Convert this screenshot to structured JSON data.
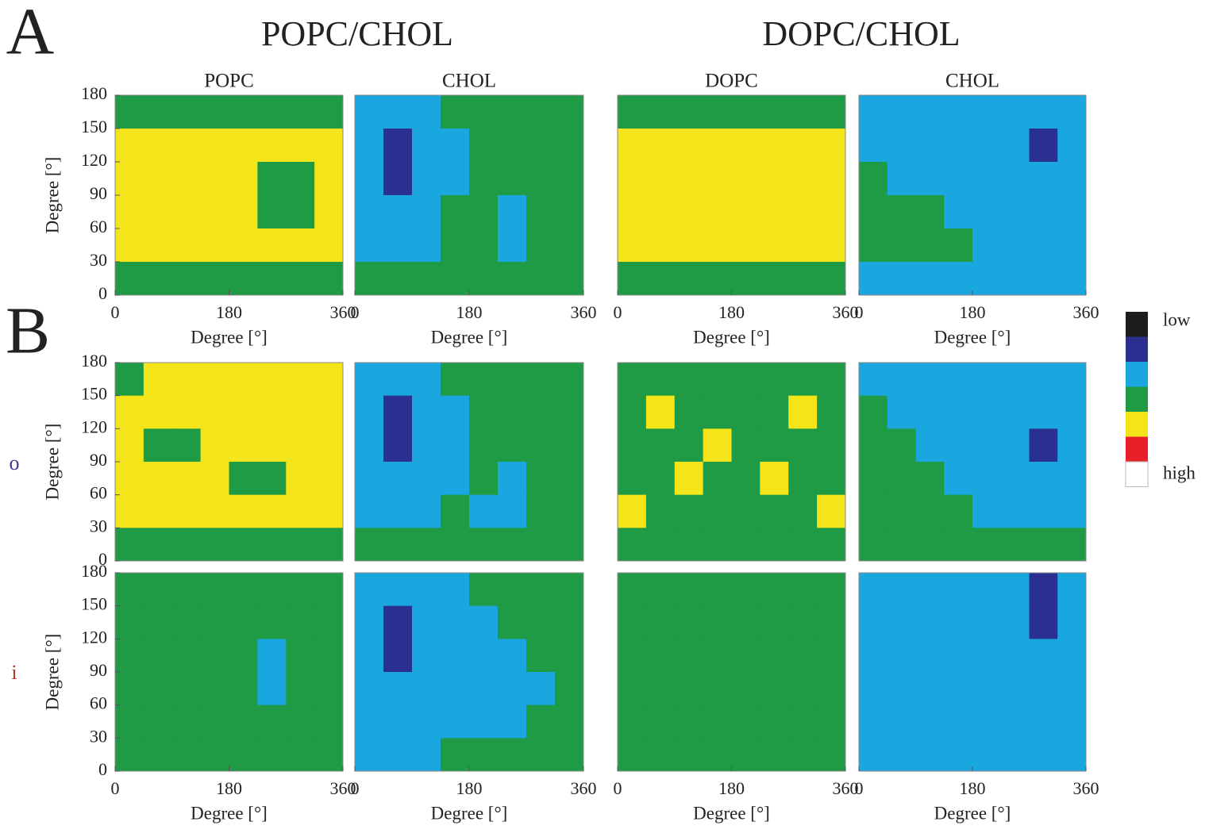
{
  "figure": {
    "panel_labels": [
      "A",
      "B"
    ],
    "group_titles": [
      "POPC/CHOL",
      "DOPC/CHOL"
    ],
    "row_labels": [
      "o",
      "i"
    ],
    "colorbar": {
      "levels": [
        0,
        1,
        2,
        3,
        4,
        5,
        6
      ],
      "colors": [
        "#1c1c1c",
        "#2b2f8f",
        "#1aa7e0",
        "#1f9a45",
        "#f3e51a",
        "#e8202a",
        "#ffffff"
      ],
      "low_label": "low",
      "high_label": "high"
    }
  },
  "chart_data": [
    {
      "type": "heatmap",
      "title": "POPC",
      "xlabel": "Degree [°]",
      "ylabel": "Degree [°]",
      "xlim": [
        0,
        360
      ],
      "ylim": [
        0,
        180
      ],
      "xticks": [
        0,
        180,
        360
      ],
      "yticks": [
        0,
        30,
        60,
        90,
        120,
        150,
        180
      ],
      "z": [
        [
          3,
          3,
          3,
          3,
          3,
          3,
          3,
          3
        ],
        [
          4,
          4,
          4,
          4,
          4,
          4,
          4,
          4
        ],
        [
          4,
          4,
          4,
          4,
          4,
          3,
          3,
          4
        ],
        [
          4,
          4,
          4,
          4,
          4,
          3,
          3,
          4
        ],
        [
          4,
          4,
          4,
          4,
          4,
          4,
          4,
          4
        ],
        [
          3,
          3,
          3,
          3,
          3,
          3,
          3,
          3
        ]
      ]
    },
    {
      "type": "heatmap",
      "title": "CHOL",
      "xlabel": "Degree [°]",
      "xlim": [
        0,
        360
      ],
      "ylim": [
        0,
        180
      ],
      "xticks": [
        0,
        180,
        360
      ],
      "z": [
        [
          2,
          2,
          2,
          3,
          3,
          3,
          3,
          3
        ],
        [
          2,
          1,
          2,
          2,
          3,
          3,
          3,
          3
        ],
        [
          2,
          1,
          2,
          2,
          3,
          3,
          3,
          3
        ],
        [
          2,
          2,
          2,
          3,
          3,
          2,
          3,
          3
        ],
        [
          2,
          2,
          2,
          3,
          3,
          2,
          3,
          3
        ],
        [
          3,
          3,
          3,
          3,
          3,
          3,
          3,
          3
        ]
      ]
    },
    {
      "type": "heatmap",
      "title": "DOPC",
      "xlabel": "Degree [°]",
      "xlim": [
        0,
        360
      ],
      "ylim": [
        0,
        180
      ],
      "xticks": [
        0,
        180,
        360
      ],
      "z": [
        [
          3,
          3,
          3,
          3,
          3,
          3,
          3,
          3
        ],
        [
          4,
          4,
          4,
          4,
          4,
          4,
          4,
          4
        ],
        [
          4,
          4,
          4,
          4,
          4,
          4,
          4,
          4
        ],
        [
          4,
          4,
          4,
          4,
          4,
          4,
          4,
          4
        ],
        [
          4,
          4,
          4,
          4,
          4,
          4,
          4,
          4
        ],
        [
          3,
          3,
          3,
          3,
          3,
          3,
          3,
          3
        ]
      ]
    },
    {
      "type": "heatmap",
      "title": "CHOL",
      "xlabel": "Degree [°]",
      "xlim": [
        0,
        360
      ],
      "ylim": [
        0,
        180
      ],
      "xticks": [
        0,
        180,
        360
      ],
      "z": [
        [
          2,
          2,
          2,
          2,
          2,
          2,
          2,
          2
        ],
        [
          2,
          2,
          2,
          2,
          2,
          2,
          1,
          2
        ],
        [
          3,
          2,
          2,
          2,
          2,
          2,
          2,
          2
        ],
        [
          3,
          3,
          3,
          2,
          2,
          2,
          2,
          2
        ],
        [
          3,
          3,
          3,
          3,
          2,
          2,
          2,
          2
        ],
        [
          2,
          2,
          2,
          2,
          2,
          2,
          2,
          2
        ]
      ]
    },
    {
      "type": "heatmap",
      "ylabel": "Degree [°]",
      "xlim": [
        0,
        360
      ],
      "ylim": [
        0,
        180
      ],
      "yticks": [
        0,
        30,
        60,
        90,
        120,
        150,
        180
      ],
      "z": [
        [
          3,
          4,
          4,
          4,
          4,
          4,
          4,
          4
        ],
        [
          4,
          4,
          4,
          4,
          4,
          4,
          4,
          4
        ],
        [
          4,
          3,
          3,
          4,
          4,
          4,
          4,
          4
        ],
        [
          4,
          4,
          4,
          4,
          3,
          3,
          4,
          4
        ],
        [
          4,
          4,
          4,
          4,
          4,
          4,
          4,
          4
        ],
        [
          3,
          3,
          3,
          3,
          3,
          3,
          3,
          3
        ]
      ]
    },
    {
      "type": "heatmap",
      "xlim": [
        0,
        360
      ],
      "ylim": [
        0,
        180
      ],
      "z": [
        [
          2,
          2,
          2,
          3,
          3,
          3,
          3,
          3
        ],
        [
          2,
          1,
          2,
          2,
          3,
          3,
          3,
          3
        ],
        [
          2,
          1,
          2,
          2,
          3,
          3,
          3,
          3
        ],
        [
          2,
          2,
          2,
          2,
          3,
          2,
          3,
          3
        ],
        [
          2,
          2,
          2,
          3,
          2,
          2,
          3,
          3
        ],
        [
          3,
          3,
          3,
          3,
          3,
          3,
          3,
          3
        ]
      ]
    },
    {
      "type": "heatmap",
      "xlim": [
        0,
        360
      ],
      "ylim": [
        0,
        180
      ],
      "z": [
        [
          3,
          3,
          3,
          3,
          3,
          3,
          3,
          3
        ],
        [
          3,
          4,
          3,
          3,
          3,
          3,
          4,
          3
        ],
        [
          3,
          3,
          3,
          4,
          3,
          3,
          3,
          3
        ],
        [
          3,
          3,
          4,
          3,
          3,
          4,
          3,
          3
        ],
        [
          4,
          3,
          3,
          3,
          3,
          3,
          3,
          4
        ],
        [
          3,
          3,
          3,
          3,
          3,
          3,
          3,
          3
        ]
      ]
    },
    {
      "type": "heatmap",
      "xlim": [
        0,
        360
      ],
      "ylim": [
        0,
        180
      ],
      "z": [
        [
          2,
          2,
          2,
          2,
          2,
          2,
          2,
          2
        ],
        [
          3,
          2,
          2,
          2,
          2,
          2,
          2,
          2
        ],
        [
          3,
          3,
          2,
          2,
          2,
          2,
          1,
          2
        ],
        [
          3,
          3,
          3,
          2,
          2,
          2,
          2,
          2
        ],
        [
          3,
          3,
          3,
          3,
          2,
          2,
          2,
          2
        ],
        [
          3,
          3,
          3,
          3,
          3,
          3,
          3,
          3
        ]
      ]
    },
    {
      "type": "heatmap",
      "xlabel": "Degree [°]",
      "ylabel": "Degree [°]",
      "xlim": [
        0,
        360
      ],
      "ylim": [
        0,
        180
      ],
      "xticks": [
        0,
        180,
        360
      ],
      "yticks": [
        0,
        30,
        60,
        90,
        120,
        150,
        180
      ],
      "z": [
        [
          3,
          3,
          3,
          3,
          3,
          3,
          3,
          3
        ],
        [
          3,
          3,
          3,
          3,
          3,
          3,
          3,
          3
        ],
        [
          3,
          3,
          3,
          3,
          3,
          2,
          3,
          3
        ],
        [
          3,
          3,
          3,
          3,
          3,
          2,
          3,
          3
        ],
        [
          3,
          3,
          3,
          3,
          3,
          3,
          3,
          3
        ],
        [
          3,
          3,
          3,
          3,
          3,
          3,
          3,
          3
        ]
      ]
    },
    {
      "type": "heatmap",
      "xlabel": "Degree [°]",
      "xlim": [
        0,
        360
      ],
      "ylim": [
        0,
        180
      ],
      "xticks": [
        0,
        180,
        360
      ],
      "z": [
        [
          2,
          2,
          2,
          2,
          3,
          3,
          3,
          3
        ],
        [
          2,
          1,
          2,
          2,
          2,
          3,
          3,
          3
        ],
        [
          2,
          1,
          2,
          2,
          2,
          2,
          3,
          3
        ],
        [
          2,
          2,
          2,
          2,
          2,
          2,
          2,
          3
        ],
        [
          2,
          2,
          2,
          2,
          2,
          2,
          3,
          3
        ],
        [
          2,
          2,
          2,
          3,
          3,
          3,
          3,
          3
        ]
      ]
    },
    {
      "type": "heatmap",
      "xlabel": "Degree [°]",
      "xlim": [
        0,
        360
      ],
      "ylim": [
        0,
        180
      ],
      "xticks": [
        0,
        180,
        360
      ],
      "z": [
        [
          3,
          3,
          3,
          3,
          3,
          3,
          3,
          3
        ],
        [
          3,
          3,
          3,
          3,
          3,
          3,
          3,
          3
        ],
        [
          3,
          3,
          3,
          3,
          3,
          3,
          3,
          3
        ],
        [
          3,
          3,
          3,
          3,
          3,
          3,
          3,
          3
        ],
        [
          3,
          3,
          3,
          3,
          3,
          3,
          3,
          3
        ],
        [
          3,
          3,
          3,
          3,
          3,
          3,
          3,
          3
        ]
      ]
    },
    {
      "type": "heatmap",
      "xlabel": "Degree [°]",
      "xlim": [
        0,
        360
      ],
      "ylim": [
        0,
        180
      ],
      "xticks": [
        0,
        180,
        360
      ],
      "z": [
        [
          2,
          2,
          2,
          2,
          2,
          2,
          1,
          2
        ],
        [
          2,
          2,
          2,
          2,
          2,
          2,
          1,
          2
        ],
        [
          2,
          2,
          2,
          2,
          2,
          2,
          2,
          2
        ],
        [
          2,
          2,
          2,
          2,
          2,
          2,
          2,
          2
        ],
        [
          2,
          2,
          2,
          2,
          2,
          2,
          2,
          2
        ],
        [
          2,
          2,
          2,
          2,
          2,
          2,
          2,
          2
        ]
      ]
    }
  ]
}
